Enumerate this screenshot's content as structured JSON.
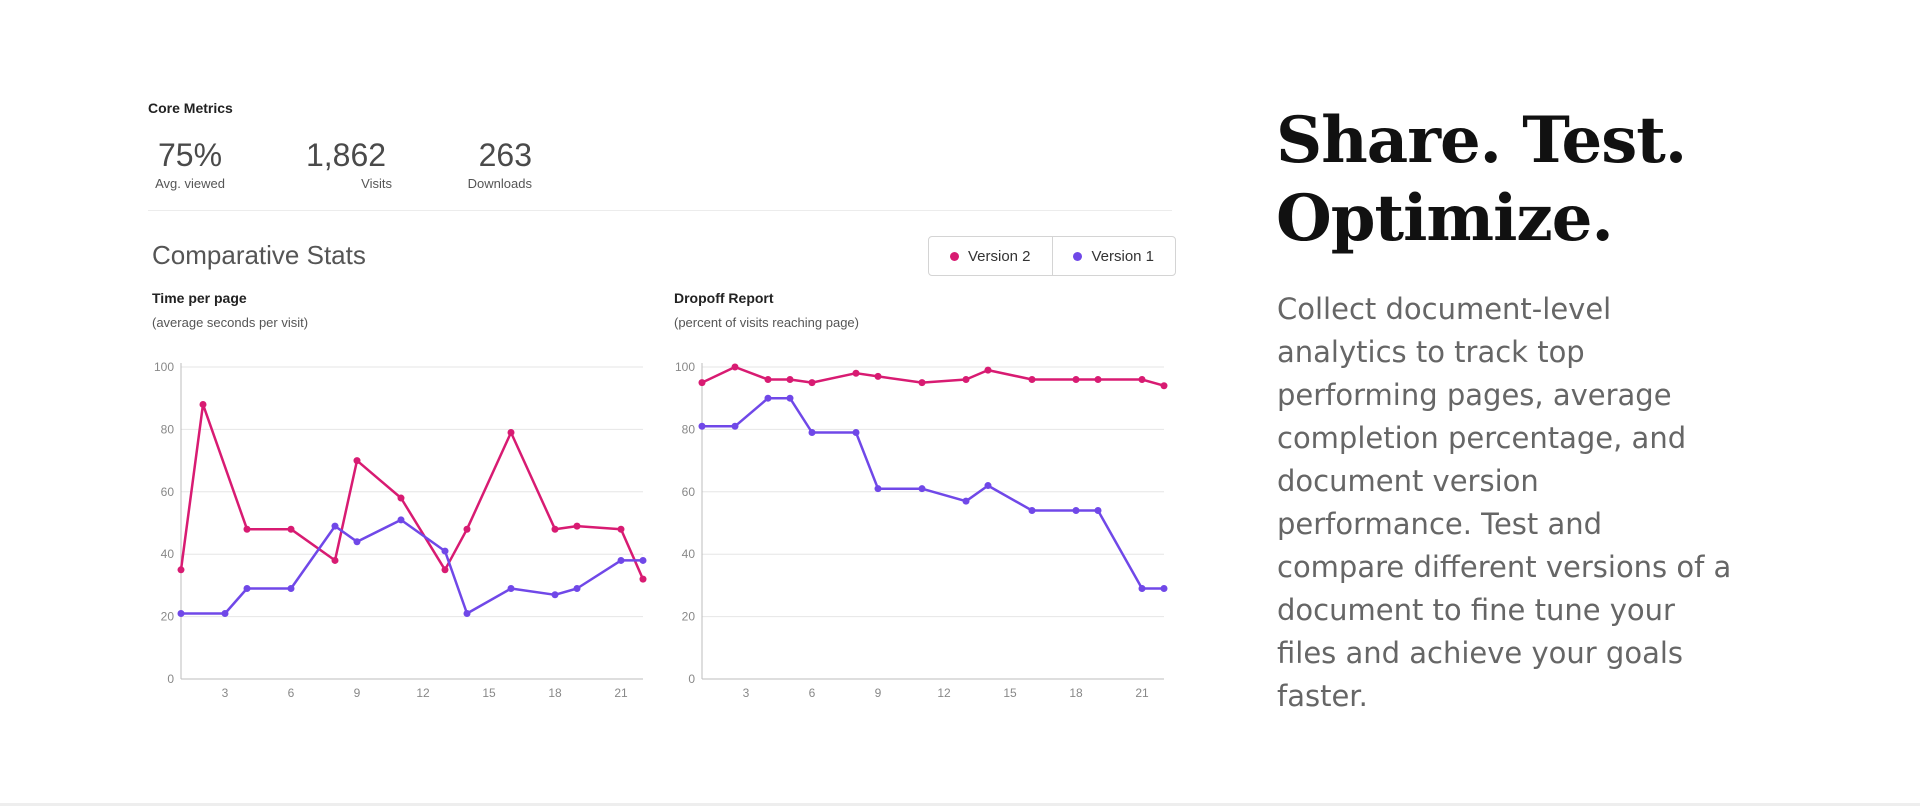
{
  "core_metrics": {
    "title": "Core Metrics",
    "items": [
      {
        "value": "75%",
        "label": "Avg. viewed"
      },
      {
        "value": "1,862",
        "label": "Visits"
      },
      {
        "value": "263",
        "label": "Downloads"
      }
    ]
  },
  "comparative": {
    "title": "Comparative Stats",
    "legend": [
      {
        "label": "Version 2",
        "color": "#d81b72"
      },
      {
        "label": "Version 1",
        "color": "#7048e8"
      }
    ]
  },
  "chart_data": [
    {
      "type": "line",
      "title": "Time per page",
      "subtitle": "(average seconds per visit)",
      "xlabel": "",
      "ylabel": "",
      "ylim": [
        0,
        100
      ],
      "yticks": [
        0,
        20,
        40,
        60,
        80,
        100
      ],
      "xlim": [
        1,
        22
      ],
      "xticks": [
        3,
        6,
        9,
        12,
        15,
        18,
        21
      ],
      "grid": true,
      "series": [
        {
          "name": "Version 2",
          "color": "#d81b72",
          "x": [
            1,
            2,
            4,
            6,
            8,
            9,
            11,
            13,
            14,
            16,
            18,
            19,
            21,
            22
          ],
          "values": [
            35,
            88,
            48,
            48,
            38,
            70,
            58,
            35,
            48,
            79,
            48,
            49,
            48,
            32
          ]
        },
        {
          "name": "Version 1",
          "color": "#7048e8",
          "x": [
            1,
            3,
            4,
            6,
            8,
            9,
            11,
            13,
            14,
            16,
            18,
            19,
            21,
            22
          ],
          "values": [
            21,
            21,
            29,
            29,
            49,
            44,
            51,
            41,
            21,
            29,
            27,
            29,
            38,
            38
          ]
        }
      ]
    },
    {
      "type": "line",
      "title": "Dropoff Report",
      "subtitle": "(percent of visits reaching page)",
      "xlabel": "",
      "ylabel": "",
      "ylim": [
        0,
        100
      ],
      "yticks": [
        0,
        20,
        40,
        60,
        80,
        100
      ],
      "xlim": [
        1,
        22
      ],
      "xticks": [
        3,
        6,
        9,
        12,
        15,
        18,
        21
      ],
      "grid": true,
      "series": [
        {
          "name": "Version 2",
          "color": "#d81b72",
          "x": [
            1,
            2.5,
            4,
            5,
            6,
            8,
            9,
            11,
            13,
            14,
            16,
            18,
            19,
            21,
            22
          ],
          "values": [
            95,
            100,
            96,
            96,
            95,
            98,
            97,
            95,
            96,
            99,
            96,
            96,
            96,
            96,
            94
          ]
        },
        {
          "name": "Version 1",
          "color": "#7048e8",
          "x": [
            1,
            2.5,
            4,
            5,
            6,
            8,
            9,
            11,
            13,
            14,
            16,
            18,
            19,
            21,
            22
          ],
          "values": [
            81,
            81,
            90,
            90,
            79,
            79,
            61,
            61,
            57,
            62,
            54,
            54,
            54,
            29,
            29
          ]
        }
      ]
    }
  ],
  "promo": {
    "headline_line1": "Share. Test.",
    "headline_line2": "Optimize.",
    "description": "Collect document-level analytics to track top performing pages, average completion percentage, and document version performance. Test and compare different versions of a document to fine tune your files and achieve your goals faster."
  }
}
